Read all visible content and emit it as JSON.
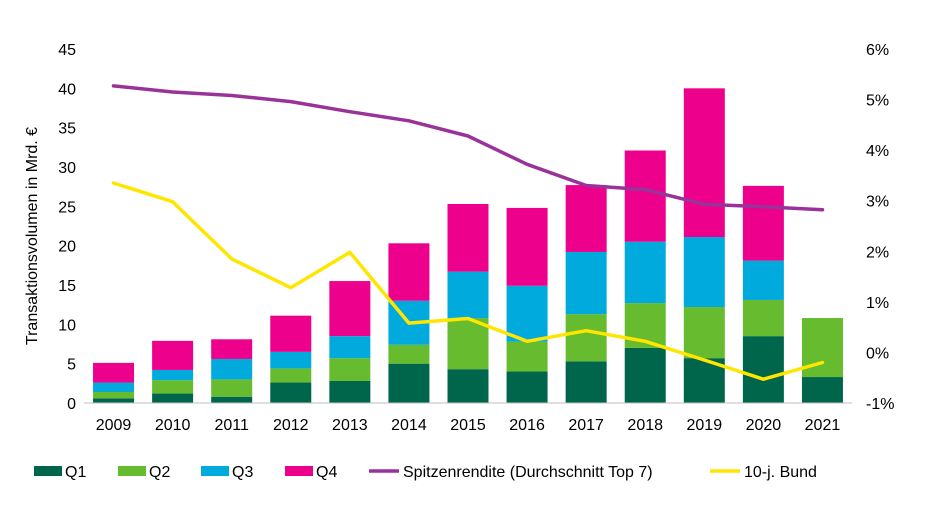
{
  "chart_data": {
    "type": "bar",
    "stacked": true,
    "categories": [
      "2009",
      "2010",
      "2011",
      "2012",
      "2013",
      "2014",
      "2015",
      "2016",
      "2017",
      "2018",
      "2019",
      "2020",
      "2021"
    ],
    "series": [
      {
        "name": "Q1",
        "color": "#00664b",
        "values": [
          0.6,
          1.2,
          0.8,
          2.6,
          2.8,
          5.0,
          4.3,
          4.0,
          5.3,
          7.0,
          5.7,
          8.5,
          3.3
        ]
      },
      {
        "name": "Q2",
        "color": "#66bb2e",
        "values": [
          0.8,
          1.7,
          2.2,
          1.8,
          2.9,
          2.4,
          6.5,
          3.8,
          6.0,
          5.7,
          6.5,
          4.6,
          7.5
        ]
      },
      {
        "name": "Q3",
        "color": "#00aadd",
        "values": [
          1.2,
          1.3,
          2.6,
          2.1,
          2.8,
          5.6,
          5.9,
          7.1,
          7.9,
          7.8,
          8.9,
          5.0,
          0
        ]
      },
      {
        "name": "Q4",
        "color": "#ec008c",
        "values": [
          2.5,
          3.7,
          2.5,
          4.6,
          7.0,
          7.3,
          8.6,
          9.9,
          8.5,
          11.6,
          18.9,
          9.5,
          0
        ]
      }
    ],
    "lines": [
      {
        "name": "Spitzenrendite (Durchschnitt Top 7)",
        "color": "#993399",
        "axis": "right",
        "values": [
          5.27,
          5.15,
          5.08,
          4.96,
          4.76,
          4.58,
          4.28,
          3.72,
          3.3,
          3.22,
          2.93,
          2.88,
          2.82
        ]
      },
      {
        "name": "10-j. Bund",
        "color": "#ffe600",
        "axis": "right",
        "values": [
          3.35,
          2.98,
          1.85,
          1.28,
          1.98,
          0.58,
          0.67,
          0.22,
          0.43,
          0.22,
          -0.15,
          -0.53,
          -0.2
        ]
      }
    ],
    "y_left": {
      "label": "Transaktionsvolumen in Mrd. €",
      "min": 0,
      "max": 45,
      "ticks": [
        "0",
        "5",
        "10",
        "15",
        "20",
        "25",
        "30",
        "35",
        "40",
        "45"
      ]
    },
    "y_right": {
      "min": -1,
      "max": 6,
      "ticks": [
        "-1%",
        "0%",
        "1%",
        "2%",
        "3%",
        "4%",
        "5%",
        "6%"
      ]
    },
    "grid": false,
    "legend": "bottom"
  }
}
